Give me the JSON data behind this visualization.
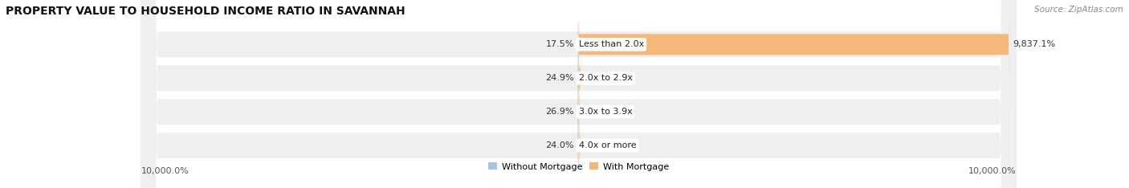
{
  "title": "PROPERTY VALUE TO HOUSEHOLD INCOME RATIO IN SAVANNAH",
  "source": "Source: ZipAtlas.com",
  "categories": [
    "Less than 2.0x",
    "2.0x to 2.9x",
    "3.0x to 3.9x",
    "4.0x or more"
  ],
  "without_mortgage": [
    17.5,
    24.9,
    26.9,
    24.0
  ],
  "with_mortgage": [
    9837.1,
    42.6,
    13.8,
    26.7
  ],
  "color_without": "#A8C4E0",
  "color_with": "#F5B87A",
  "xlim_left": -10000,
  "xlim_right": 10000,
  "xlabel_left": "10,000.0%",
  "xlabel_right": "10,000.0%",
  "legend_without": "Without Mortgage",
  "legend_with": "With Mortgage",
  "bar_height": 0.62,
  "bg_bar": "#EFEFEF",
  "bg_figure": "#FFFFFF",
  "title_fontsize": 10,
  "label_fontsize": 8,
  "source_fontsize": 7.5,
  "tick_fontsize": 8
}
